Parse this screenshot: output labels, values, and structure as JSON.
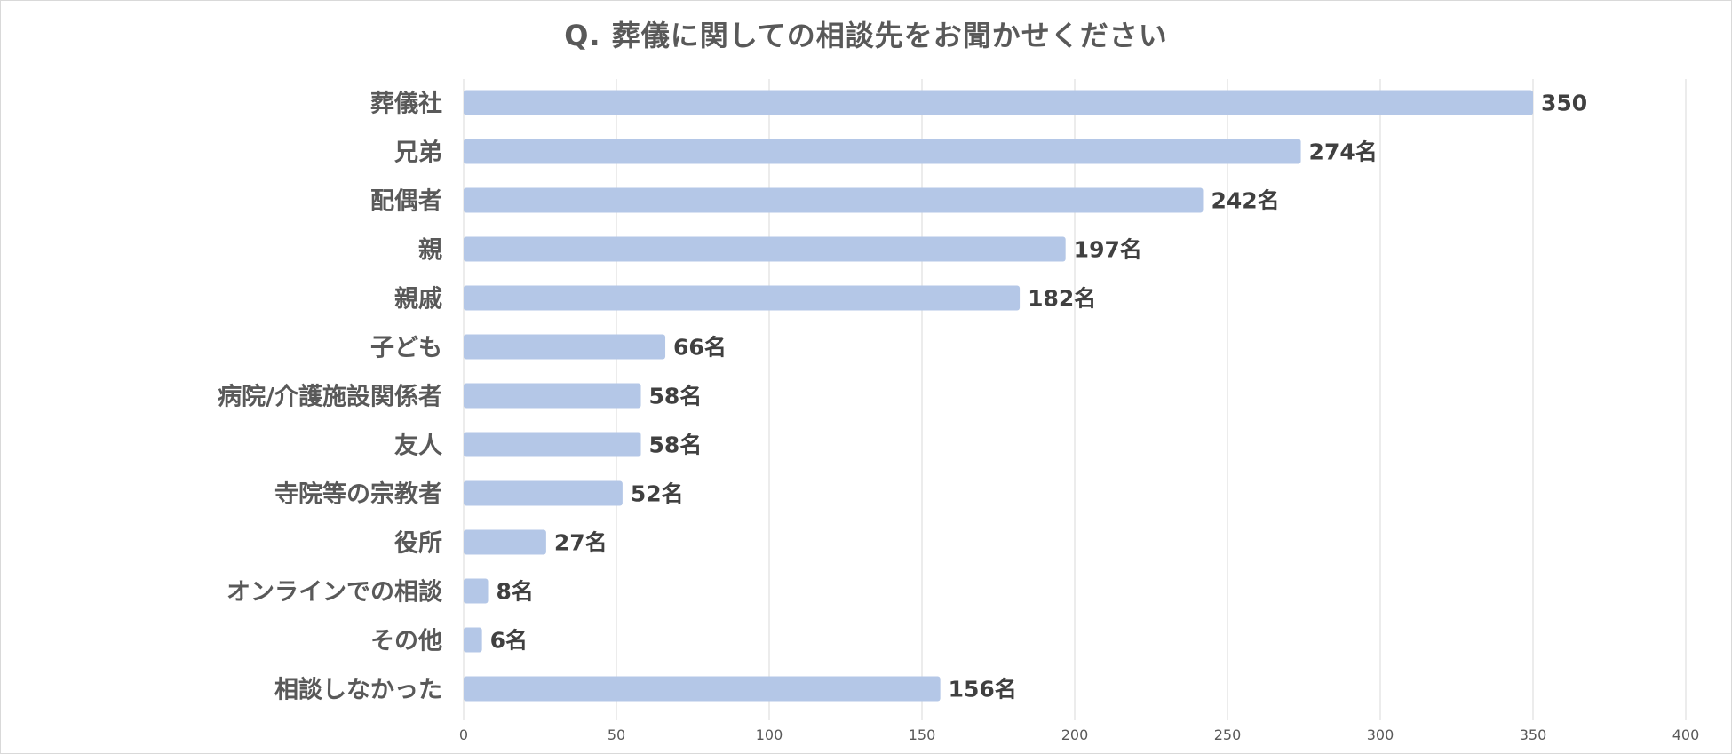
{
  "chart_data": {
    "type": "bar",
    "orientation": "horizontal",
    "title": "Q. 葬儀に関しての相談先をお聞かせください",
    "xlabel": "",
    "ylabel": "",
    "xlim": [
      0,
      400
    ],
    "xticks": [
      0,
      50,
      100,
      150,
      200,
      250,
      300,
      350,
      400
    ],
    "grid": "vertical",
    "legend": "none",
    "bar_color": "#b4c7e7",
    "categories": [
      "葬儀社",
      "兄弟",
      "配偶者",
      "親",
      "親戚",
      "子ども",
      "病院/介護施設関係者",
      "友人",
      "寺院等の宗教者",
      "役所",
      "オンラインでの相談",
      "その他",
      "相談しなかった"
    ],
    "values": [
      350,
      274,
      242,
      197,
      182,
      66,
      58,
      58,
      52,
      27,
      8,
      6,
      156
    ],
    "data_labels": [
      "350",
      "274名",
      "242名",
      "197名",
      "182名",
      "66名",
      "58名",
      "58名",
      "52名",
      "27名",
      "8名",
      "6名",
      "156名"
    ]
  }
}
